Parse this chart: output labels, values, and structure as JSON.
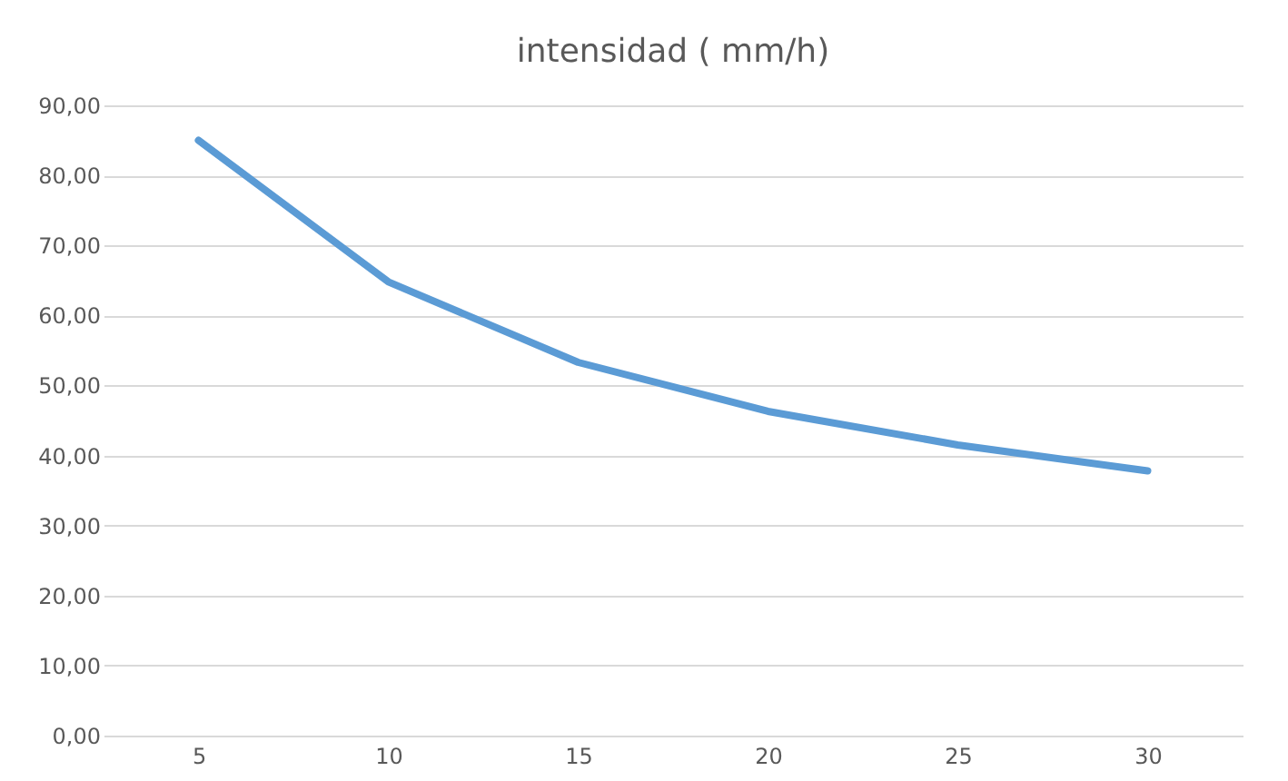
{
  "chart_data": {
    "type": "line",
    "title": "intensidad ( mm/h)",
    "categories": [
      "5",
      "10",
      "15",
      "20",
      "25",
      "30"
    ],
    "series": [
      {
        "color": "#5b9bd5",
        "values": [
          85.0,
          64.8,
          53.3,
          46.3,
          41.5,
          37.8
        ]
      }
    ],
    "ylim": [
      0,
      90
    ],
    "yticks": [
      {
        "value": 0,
        "label": "0,00"
      },
      {
        "value": 10,
        "label": "10,00"
      },
      {
        "value": 20,
        "label": "20,00"
      },
      {
        "value": 30,
        "label": "30,00"
      },
      {
        "value": 40,
        "label": "40,00"
      },
      {
        "value": 50,
        "label": "50,00"
      },
      {
        "value": 60,
        "label": "60,00"
      },
      {
        "value": 70,
        "label": "70,00"
      },
      {
        "value": 80,
        "label": "80,00"
      },
      {
        "value": 90,
        "label": "90,00"
      }
    ],
    "grid": "y",
    "marker": "none",
    "line_style": "solid"
  }
}
